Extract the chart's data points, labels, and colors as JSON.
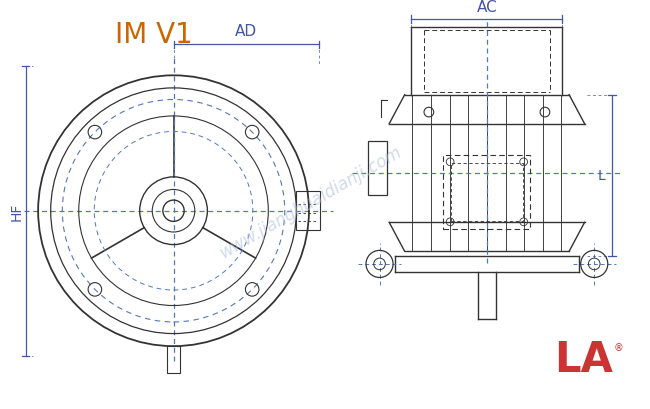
{
  "title": "IM V1",
  "title_color": "#cc6600",
  "title_fontsize": 20,
  "bg_color": "#ffffff",
  "line_color": "#333333",
  "dim_line_color": "#4455aa",
  "blue_dash_color": "#5577bb",
  "label_AC": "AC",
  "label_AD": "AD",
  "label_HF": "HF",
  "label_L": "L",
  "watermark": "www.jianghuaidianji.com",
  "watermark_color": "#aabbdd",
  "logo_text": "LA",
  "logo_color": "#cc3333"
}
